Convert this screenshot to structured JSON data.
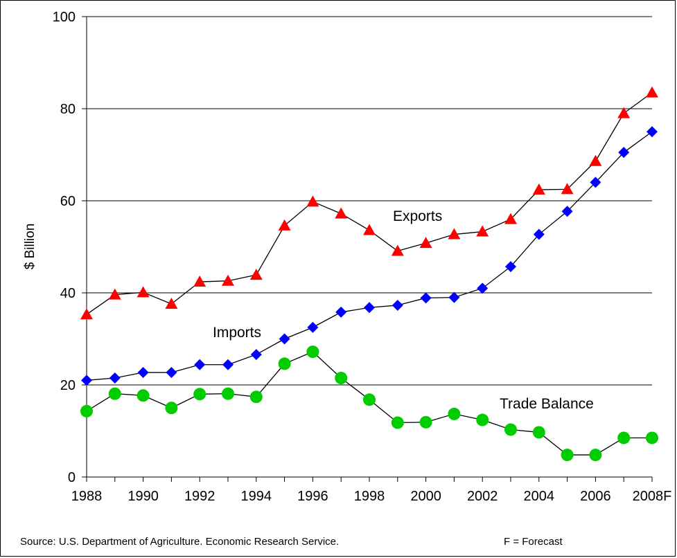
{
  "footer": {
    "source": "Source: U.S. Department of Agriculture.  Economic Research Service.",
    "forecast_note": "F = Forecast"
  },
  "chart_data": {
    "type": "line",
    "title": "",
    "xlabel": "",
    "ylabel": "$ Billion",
    "ylim": [
      0,
      100
    ],
    "y_ticks": [
      0,
      20,
      40,
      60,
      80,
      100
    ],
    "grid": "horizontal",
    "categories": [
      "1988",
      "1989",
      "1990",
      "1991",
      "1992",
      "1993",
      "1994",
      "1995",
      "1996",
      "1997",
      "1998",
      "1999",
      "2000",
      "2001",
      "2002",
      "2003",
      "2004",
      "2005",
      "2006",
      "2007",
      "2008F"
    ],
    "x_tick_labels": [
      "1988",
      "1990",
      "1992",
      "1994",
      "1996",
      "1998",
      "2000",
      "2002",
      "2004",
      "2006",
      "2008F"
    ],
    "series": [
      {
        "name": "Exports",
        "color": "#ff0000",
        "marker": "triangle",
        "values": [
          35.3,
          39.6,
          40.1,
          37.6,
          42.4,
          42.6,
          43.9,
          54.6,
          59.8,
          57.2,
          53.6,
          49.1,
          50.8,
          52.7,
          53.3,
          56.0,
          62.4,
          62.5,
          68.6,
          79.0,
          83.5
        ]
      },
      {
        "name": "Imports",
        "color": "#0000ff",
        "marker": "diamond",
        "values": [
          21.0,
          21.5,
          22.7,
          22.7,
          24.4,
          24.4,
          26.6,
          30.0,
          32.5,
          35.8,
          36.8,
          37.3,
          38.9,
          39.0,
          41.0,
          45.7,
          52.7,
          57.7,
          64.0,
          70.5,
          75.0
        ]
      },
      {
        "name": "Trade Balance",
        "color": "#00cc00",
        "marker": "circle",
        "values": [
          14.3,
          18.1,
          17.7,
          15.0,
          18.0,
          18.1,
          17.4,
          24.6,
          27.2,
          21.5,
          16.8,
          11.8,
          11.9,
          13.7,
          12.4,
          10.3,
          9.7,
          4.8,
          4.8,
          8.5,
          8.5
        ]
      }
    ]
  }
}
